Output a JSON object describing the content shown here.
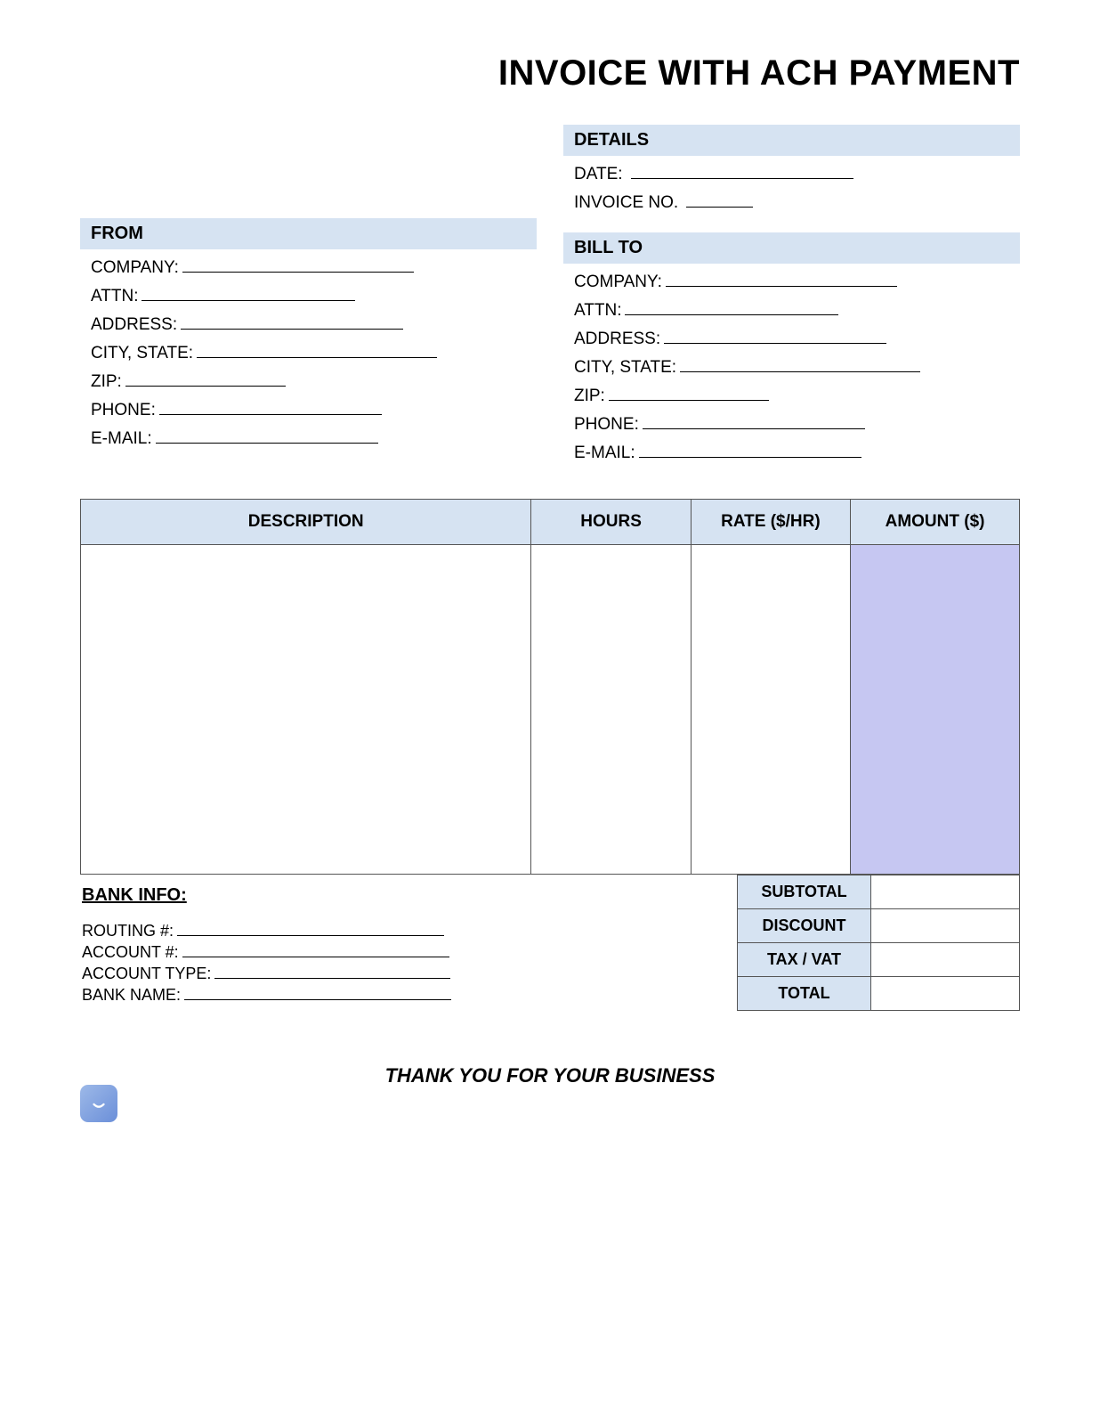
{
  "title": "INVOICE WITH ACH PAYMENT",
  "details": {
    "header": "DETAILS",
    "date_label": "DATE:",
    "date_line_width": 250,
    "invoice_no_label": "INVOICE NO.",
    "invoice_no_line_width": 75
  },
  "from": {
    "header": "FROM",
    "fields": [
      {
        "label": "COMPANY:",
        "line_width": 260
      },
      {
        "label": "ATTN:",
        "line_width": 240
      },
      {
        "label": "ADDRESS:",
        "line_width": 250
      },
      {
        "label": "CITY, STATE:",
        "line_width": 270
      },
      {
        "label": "ZIP:",
        "line_width": 180
      },
      {
        "label": "PHONE:",
        "line_width": 250
      },
      {
        "label": "E-MAIL:",
        "line_width": 250
      }
    ]
  },
  "billto": {
    "header": "BILL TO",
    "fields": [
      {
        "label": "COMPANY:",
        "line_width": 260
      },
      {
        "label": "ATTN:",
        "line_width": 240
      },
      {
        "label": "ADDRESS:",
        "line_width": 250
      },
      {
        "label": "CITY, STATE:",
        "line_width": 270
      },
      {
        "label": "ZIP:",
        "line_width": 180
      },
      {
        "label": "PHONE:",
        "line_width": 250
      },
      {
        "label": "E-MAIL:",
        "line_width": 250
      }
    ]
  },
  "table": {
    "columns": [
      "DESCRIPTION",
      "HOURS",
      "RATE ($/HR)",
      "AMOUNT ($)"
    ],
    "header_bg": "#d6e3f2",
    "amount_bg": "#c6c7f2",
    "border_color": "#555555"
  },
  "bank": {
    "title": "BANK INFO:",
    "fields": [
      {
        "label": "ROUTING #:",
        "line_width": 300
      },
      {
        "label": "ACCOUNT #:",
        "line_width": 300
      },
      {
        "label": "ACCOUNT TYPE:",
        "line_width": 265
      },
      {
        "label": "BANK NAME:",
        "line_width": 300
      }
    ]
  },
  "totals": {
    "rows": [
      "SUBTOTAL",
      "DISCOUNT",
      "TAX / VAT",
      "TOTAL"
    ]
  },
  "thankyou": "THANK YOU FOR YOUR BUSINESS",
  "colors": {
    "header_bg": "#d6e3f2",
    "amount_col_bg": "#c6c7f2",
    "background": "#ffffff",
    "text": "#000000"
  }
}
